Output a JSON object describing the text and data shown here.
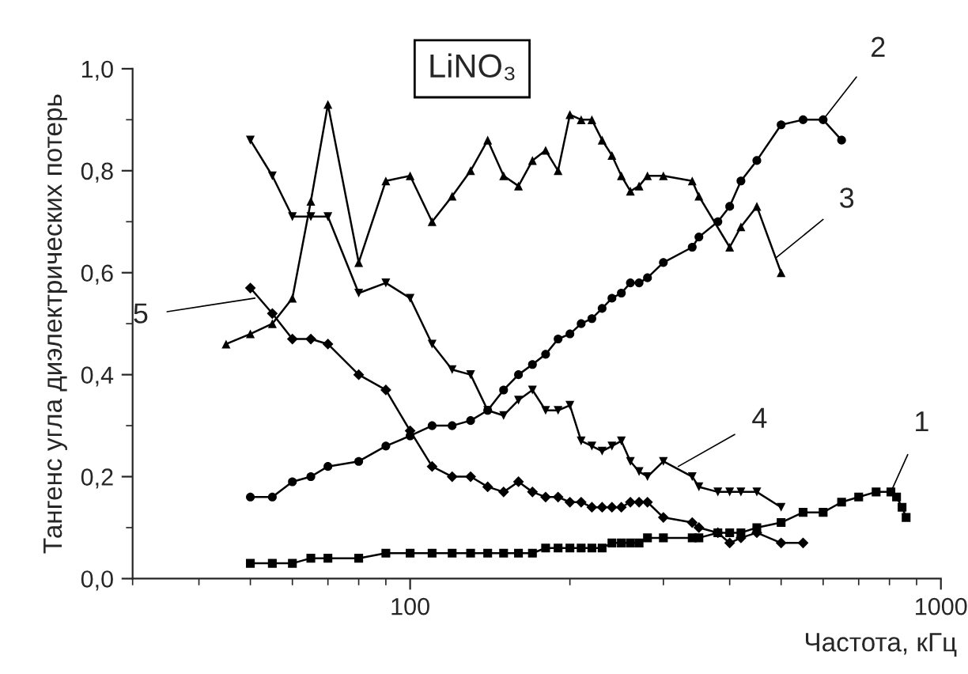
{
  "chart_data": {
    "type": "line",
    "title": "LiNO₃",
    "xlabel": "Частота, кГц",
    "ylabel": "Тангенс угла диэлектрических потерь",
    "log": "x",
    "xlim": [
      30,
      1000
    ],
    "xticks": [
      100,
      1000
    ],
    "ylim": [
      0,
      1.0
    ],
    "yticks": [
      {
        "value": 0,
        "label": "0,0"
      },
      {
        "value": 0.2,
        "label": "0,2"
      },
      {
        "value": 0.4,
        "label": "0,4"
      },
      {
        "value": 0.6,
        "label": "0,6"
      },
      {
        "value": 0.8,
        "label": "0,8"
      },
      {
        "value": 1.0,
        "label": "1,0"
      }
    ],
    "grid": false,
    "legend": false,
    "line_style": "solid",
    "series": [
      {
        "color": "#000000",
        "marker": "square",
        "x": [
          50,
          55,
          60,
          65,
          70,
          80,
          90,
          100,
          110,
          120,
          130,
          140,
          150,
          160,
          170,
          180,
          190,
          200,
          210,
          220,
          230,
          240,
          250,
          260,
          270,
          280,
          300,
          340,
          350,
          380,
          400,
          420,
          450,
          500,
          550,
          600,
          650,
          700,
          755,
          805,
          825,
          845,
          860
        ],
        "values": [
          0.03,
          0.03,
          0.03,
          0.04,
          0.04,
          0.04,
          0.05,
          0.05,
          0.05,
          0.05,
          0.05,
          0.05,
          0.05,
          0.05,
          0.05,
          0.06,
          0.06,
          0.06,
          0.06,
          0.06,
          0.06,
          0.07,
          0.07,
          0.07,
          0.07,
          0.08,
          0.08,
          0.08,
          0.08,
          0.09,
          0.09,
          0.09,
          0.1,
          0.11,
          0.13,
          0.13,
          0.15,
          0.16,
          0.17,
          0.17,
          0.16,
          0.14,
          0.12
        ]
      },
      {
        "color": "#000000",
        "marker": "circle",
        "x": [
          50,
          55,
          60,
          65,
          70,
          80,
          90,
          100,
          110,
          120,
          130,
          140,
          150,
          160,
          170,
          180,
          190,
          200,
          210,
          220,
          230,
          240,
          250,
          260,
          270,
          280,
          300,
          340,
          350,
          380,
          400,
          420,
          450,
          500,
          550,
          600,
          650
        ],
        "values": [
          0.16,
          0.16,
          0.19,
          0.2,
          0.22,
          0.23,
          0.26,
          0.28,
          0.3,
          0.3,
          0.31,
          0.33,
          0.37,
          0.4,
          0.42,
          0.44,
          0.47,
          0.48,
          0.5,
          0.51,
          0.53,
          0.55,
          0.56,
          0.58,
          0.58,
          0.59,
          0.62,
          0.65,
          0.67,
          0.7,
          0.73,
          0.78,
          0.82,
          0.89,
          0.9,
          0.9,
          0.86
        ]
      },
      {
        "color": "#000000",
        "marker": "triangle",
        "x": [
          45,
          50,
          55,
          60,
          65,
          70,
          80,
          90,
          100,
          110,
          120,
          130,
          140,
          150,
          160,
          170,
          180,
          190,
          200,
          210,
          220,
          230,
          240,
          250,
          260,
          270,
          280,
          300,
          340,
          350,
          400,
          420,
          450,
          500
        ],
        "values": [
          0.46,
          0.48,
          0.5,
          0.55,
          0.74,
          0.93,
          0.62,
          0.78,
          0.79,
          0.7,
          0.75,
          0.8,
          0.86,
          0.79,
          0.77,
          0.82,
          0.84,
          0.8,
          0.91,
          0.9,
          0.9,
          0.86,
          0.83,
          0.79,
          0.76,
          0.77,
          0.79,
          0.79,
          0.78,
          0.75,
          0.65,
          0.69,
          0.73,
          0.6
        ]
      },
      {
        "color": "#000000",
        "marker": "triangle_down",
        "x": [
          50,
          55,
          60,
          65,
          70,
          80,
          90,
          100,
          110,
          120,
          130,
          140,
          150,
          160,
          170,
          180,
          190,
          200,
          210,
          220,
          230,
          240,
          250,
          260,
          270,
          280,
          300,
          340,
          350,
          380,
          400,
          420,
          450,
          500
        ],
        "values": [
          0.86,
          0.79,
          0.71,
          0.71,
          0.71,
          0.56,
          0.58,
          0.55,
          0.46,
          0.41,
          0.4,
          0.33,
          0.32,
          0.35,
          0.37,
          0.33,
          0.33,
          0.34,
          0.27,
          0.26,
          0.25,
          0.26,
          0.27,
          0.23,
          0.21,
          0.2,
          0.23,
          0.2,
          0.18,
          0.17,
          0.17,
          0.17,
          0.17,
          0.14
        ]
      },
      {
        "color": "#000000",
        "marker": "diamond",
        "x": [
          50,
          55,
          60,
          65,
          70,
          80,
          90,
          100,
          110,
          120,
          130,
          140,
          150,
          160,
          170,
          180,
          190,
          200,
          210,
          220,
          230,
          240,
          250,
          260,
          270,
          280,
          300,
          340,
          350,
          380,
          400,
          420,
          450,
          500,
          550
        ],
        "values": [
          0.57,
          0.52,
          0.47,
          0.47,
          0.46,
          0.4,
          0.37,
          0.29,
          0.22,
          0.2,
          0.2,
          0.18,
          0.17,
          0.19,
          0.17,
          0.16,
          0.16,
          0.15,
          0.15,
          0.14,
          0.14,
          0.14,
          0.14,
          0.15,
          0.15,
          0.15,
          0.12,
          0.11,
          0.1,
          0.09,
          0.07,
          0.08,
          0.09,
          0.07,
          0.07
        ]
      }
    ],
    "annotations": [
      {
        "text": "1",
        "x": 805,
        "y": 0.17
      },
      {
        "text": "2",
        "x": 600,
        "y": 0.9
      },
      {
        "text": "3",
        "x": 490,
        "y": 0.63
      },
      {
        "text": "4",
        "x": 320,
        "y": 0.22
      },
      {
        "text": "5",
        "x": 51,
        "y": 0.55
      }
    ]
  }
}
